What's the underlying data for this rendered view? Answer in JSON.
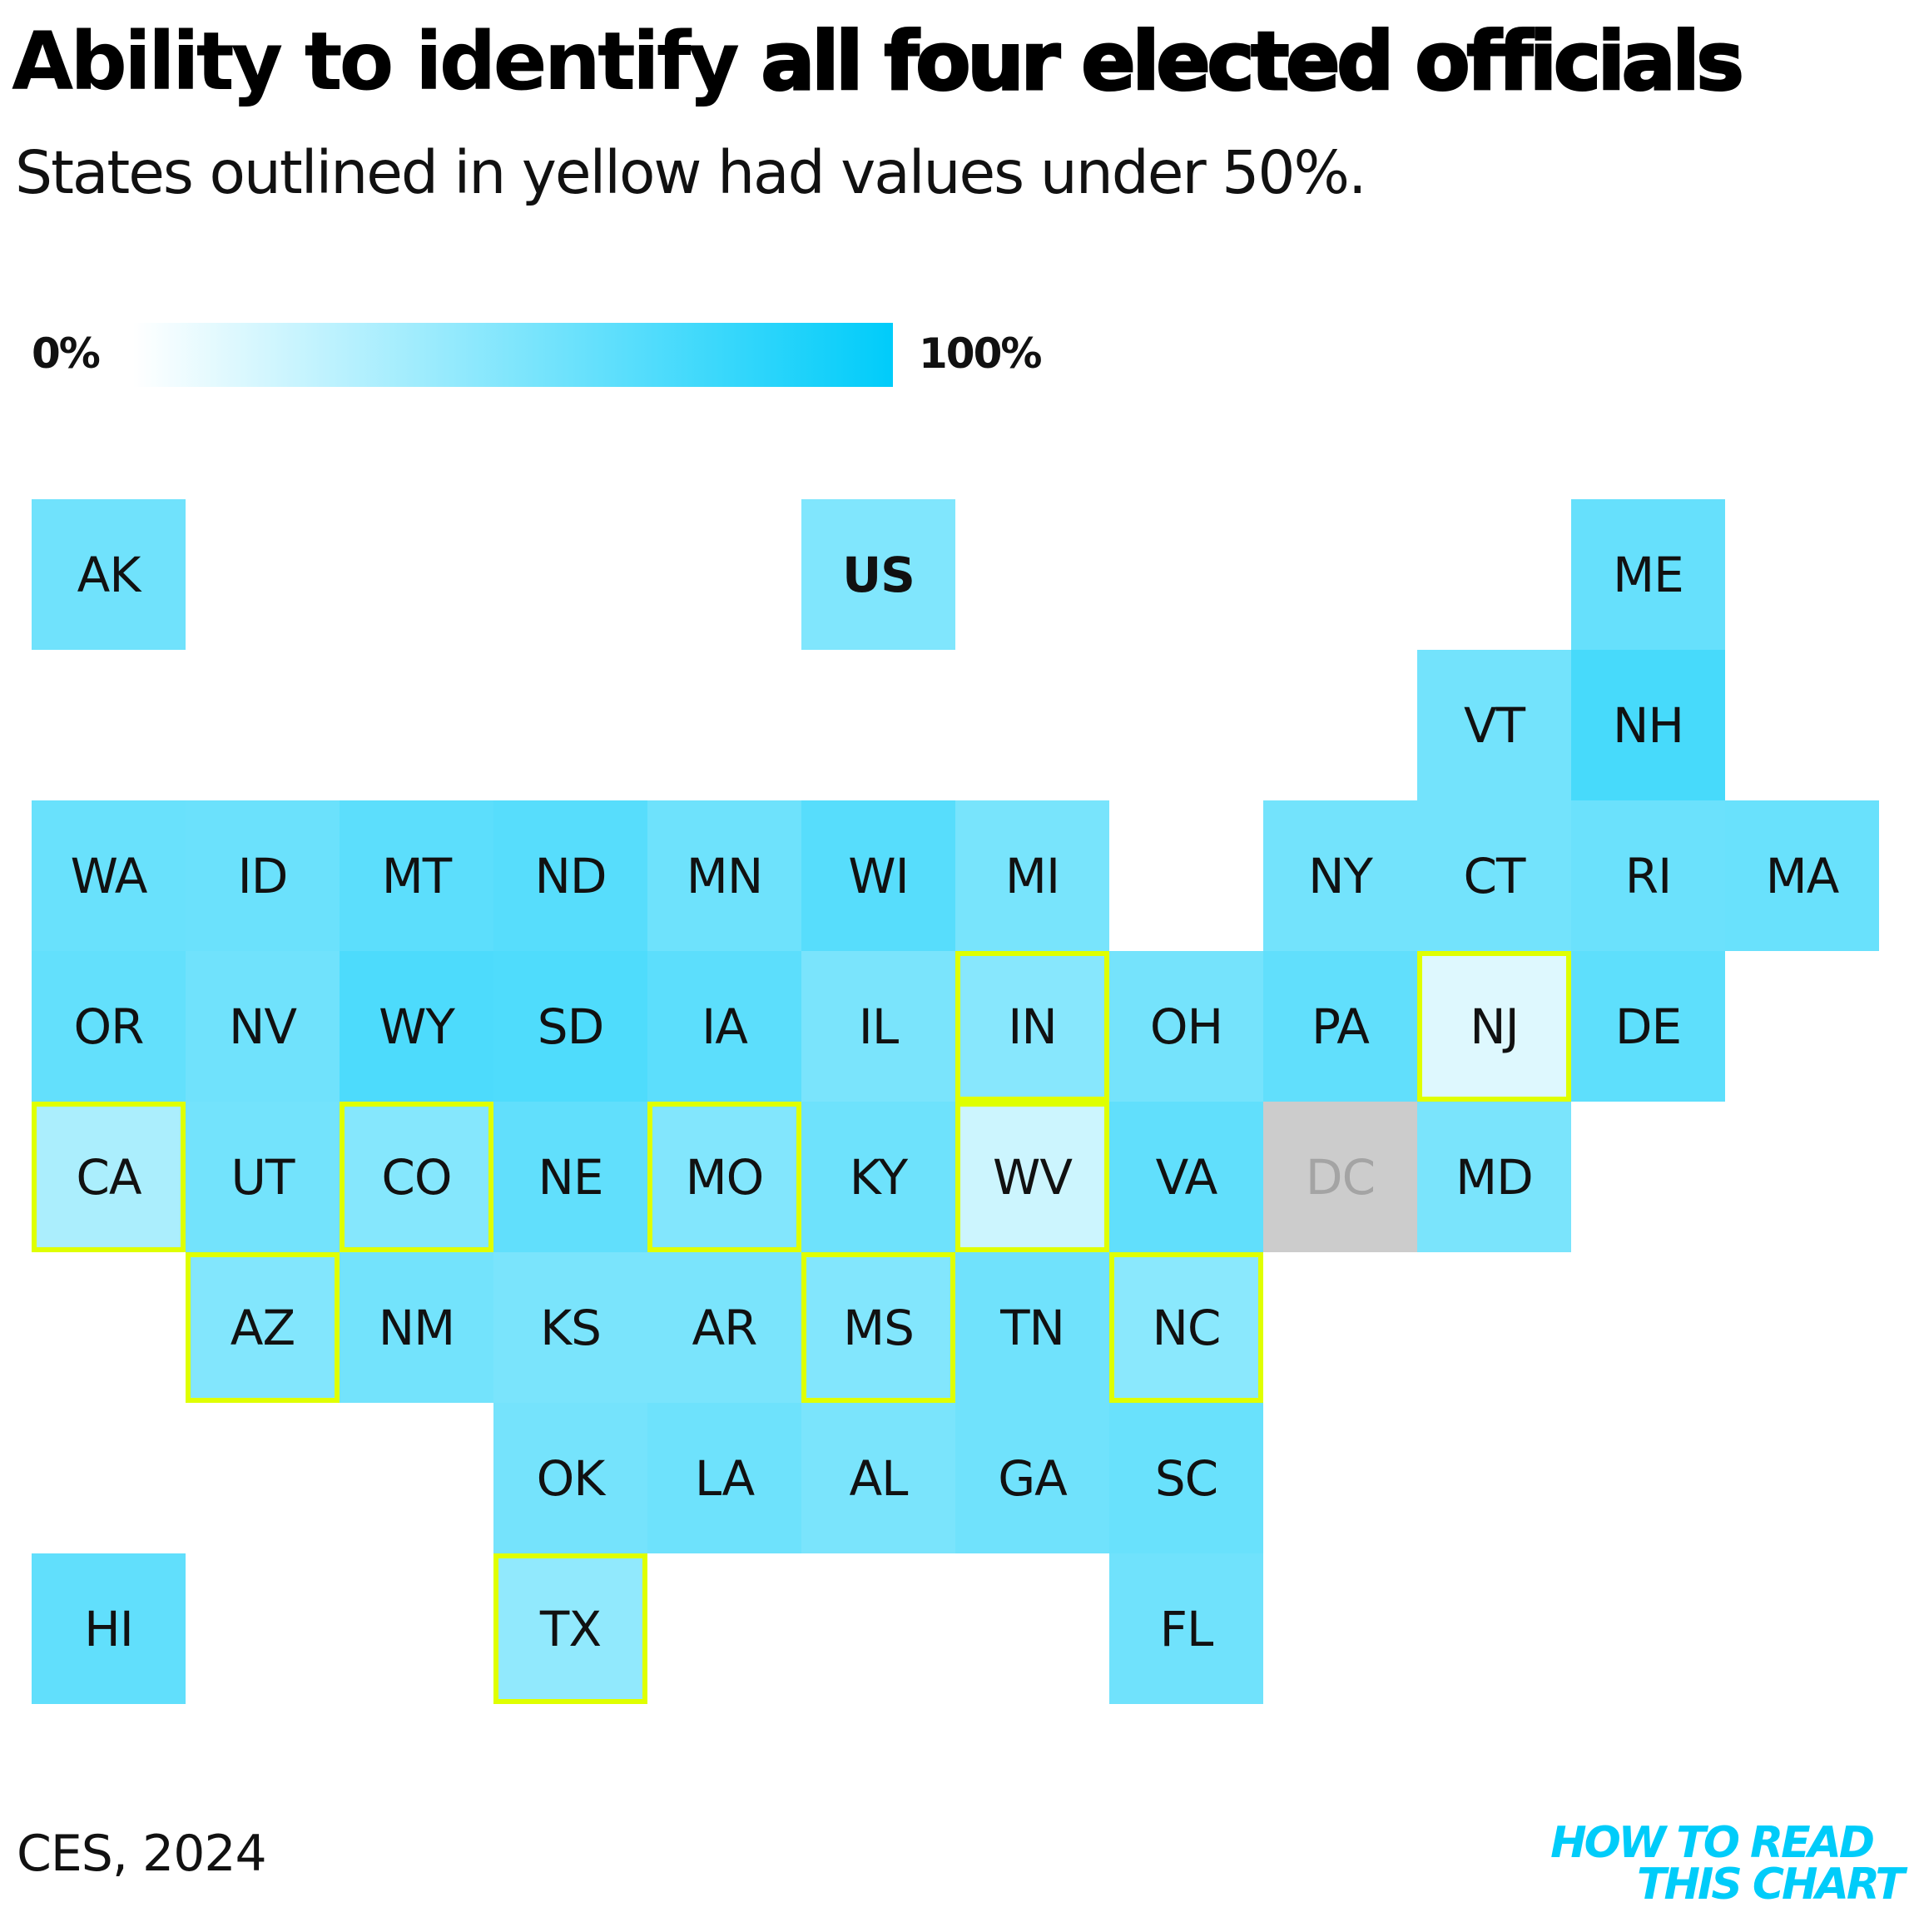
{
  "title": {
    "lead": "Ability to identify ",
    "emphasis": "all four elected officials"
  },
  "subtitle": "States outlined in yellow had values under 50%.",
  "legend": {
    "min_label": "0%",
    "max_label": "100%",
    "color_low": "#ffffff",
    "color_high": "#00ccfa"
  },
  "highlight_color": "#dfff00",
  "no_data_color": "#cccccc",
  "source": "CES, 2024",
  "brand": {
    "line1": "HOW TO READ",
    "line2": "THIS CHART",
    "color": "#00ccfa"
  },
  "chart_data": {
    "type": "heatmap",
    "title": "Ability to identify all four elected officials",
    "subtitle": "States outlined in yellow had values under 50%.",
    "scale": {
      "min": 0,
      "max": 100,
      "unit": "%"
    },
    "highlight_rule": "value < 50",
    "tiles": [
      {
        "label": "AK",
        "row": 0,
        "col": 0,
        "value": 56
      },
      {
        "label": "US",
        "row": 0,
        "col": 5,
        "value": 50
      },
      {
        "label": "ME",
        "row": 0,
        "col": 10,
        "value": 60
      },
      {
        "label": "VT",
        "row": 1,
        "col": 9,
        "value": 55
      },
      {
        "label": "NH",
        "row": 1,
        "col": 10,
        "value": 72
      },
      {
        "label": "WA",
        "row": 2,
        "col": 0,
        "value": 59
      },
      {
        "label": "ID",
        "row": 2,
        "col": 1,
        "value": 58
      },
      {
        "label": "MT",
        "row": 2,
        "col": 2,
        "value": 64
      },
      {
        "label": "ND",
        "row": 2,
        "col": 3,
        "value": 66
      },
      {
        "label": "MN",
        "row": 2,
        "col": 4,
        "value": 57
      },
      {
        "label": "WI",
        "row": 2,
        "col": 5,
        "value": 66
      },
      {
        "label": "MI",
        "row": 2,
        "col": 6,
        "value": 53
      },
      {
        "label": "NY",
        "row": 2,
        "col": 8,
        "value": 55
      },
      {
        "label": "CT",
        "row": 2,
        "col": 9,
        "value": 55
      },
      {
        "label": "RI",
        "row": 2,
        "col": 10,
        "value": 58
      },
      {
        "label": "MA",
        "row": 2,
        "col": 11,
        "value": 59
      },
      {
        "label": "OR",
        "row": 3,
        "col": 0,
        "value": 61
      },
      {
        "label": "NV",
        "row": 3,
        "col": 1,
        "value": 56
      },
      {
        "label": "WY",
        "row": 3,
        "col": 2,
        "value": 70
      },
      {
        "label": "SD",
        "row": 3,
        "col": 3,
        "value": 69
      },
      {
        "label": "IA",
        "row": 3,
        "col": 4,
        "value": 64
      },
      {
        "label": "IL",
        "row": 3,
        "col": 5,
        "value": 52
      },
      {
        "label": "IN",
        "row": 3,
        "col": 6,
        "value": 47,
        "highlight": true
      },
      {
        "label": "OH",
        "row": 3,
        "col": 7,
        "value": 54
      },
      {
        "label": "PA",
        "row": 3,
        "col": 8,
        "value": 62
      },
      {
        "label": "NJ",
        "row": 3,
        "col": 9,
        "value": 13,
        "highlight": true
      },
      {
        "label": "DE",
        "row": 3,
        "col": 10,
        "value": 63
      },
      {
        "label": "CA",
        "row": 4,
        "col": 0,
        "value": 33,
        "highlight": true
      },
      {
        "label": "UT",
        "row": 4,
        "col": 1,
        "value": 55
      },
      {
        "label": "CO",
        "row": 4,
        "col": 2,
        "value": 48,
        "highlight": true
      },
      {
        "label": "NE",
        "row": 4,
        "col": 3,
        "value": 62
      },
      {
        "label": "MO",
        "row": 4,
        "col": 4,
        "value": 49,
        "highlight": true
      },
      {
        "label": "KY",
        "row": 4,
        "col": 5,
        "value": 57
      },
      {
        "label": "WV",
        "row": 4,
        "col": 6,
        "value": 20,
        "highlight": true
      },
      {
        "label": "VA",
        "row": 4,
        "col": 7,
        "value": 62
      },
      {
        "label": "DC",
        "row": 4,
        "col": 8,
        "value": null,
        "no_data": true
      },
      {
        "label": "MD",
        "row": 4,
        "col": 9,
        "value": 52
      },
      {
        "label": "AZ",
        "row": 5,
        "col": 1,
        "value": 49,
        "highlight": true
      },
      {
        "label": "NM",
        "row": 5,
        "col": 2,
        "value": 55
      },
      {
        "label": "KS",
        "row": 5,
        "col": 3,
        "value": 52
      },
      {
        "label": "AR",
        "row": 5,
        "col": 4,
        "value": 52
      },
      {
        "label": "MS",
        "row": 5,
        "col": 5,
        "value": 49,
        "highlight": true
      },
      {
        "label": "TN",
        "row": 5,
        "col": 6,
        "value": 56
      },
      {
        "label": "NC",
        "row": 5,
        "col": 7,
        "value": 46,
        "highlight": true
      },
      {
        "label": "OK",
        "row": 6,
        "col": 3,
        "value": 54
      },
      {
        "label": "LA",
        "row": 6,
        "col": 4,
        "value": 57
      },
      {
        "label": "AL",
        "row": 6,
        "col": 5,
        "value": 52
      },
      {
        "label": "GA",
        "row": 6,
        "col": 6,
        "value": 56
      },
      {
        "label": "SC",
        "row": 6,
        "col": 7,
        "value": 59
      },
      {
        "label": "HI",
        "row": 7,
        "col": 0,
        "value": 62
      },
      {
        "label": "TX",
        "row": 7,
        "col": 3,
        "value": 43,
        "highlight": true
      },
      {
        "label": "FL",
        "row": 7,
        "col": 7,
        "value": 56
      }
    ]
  }
}
